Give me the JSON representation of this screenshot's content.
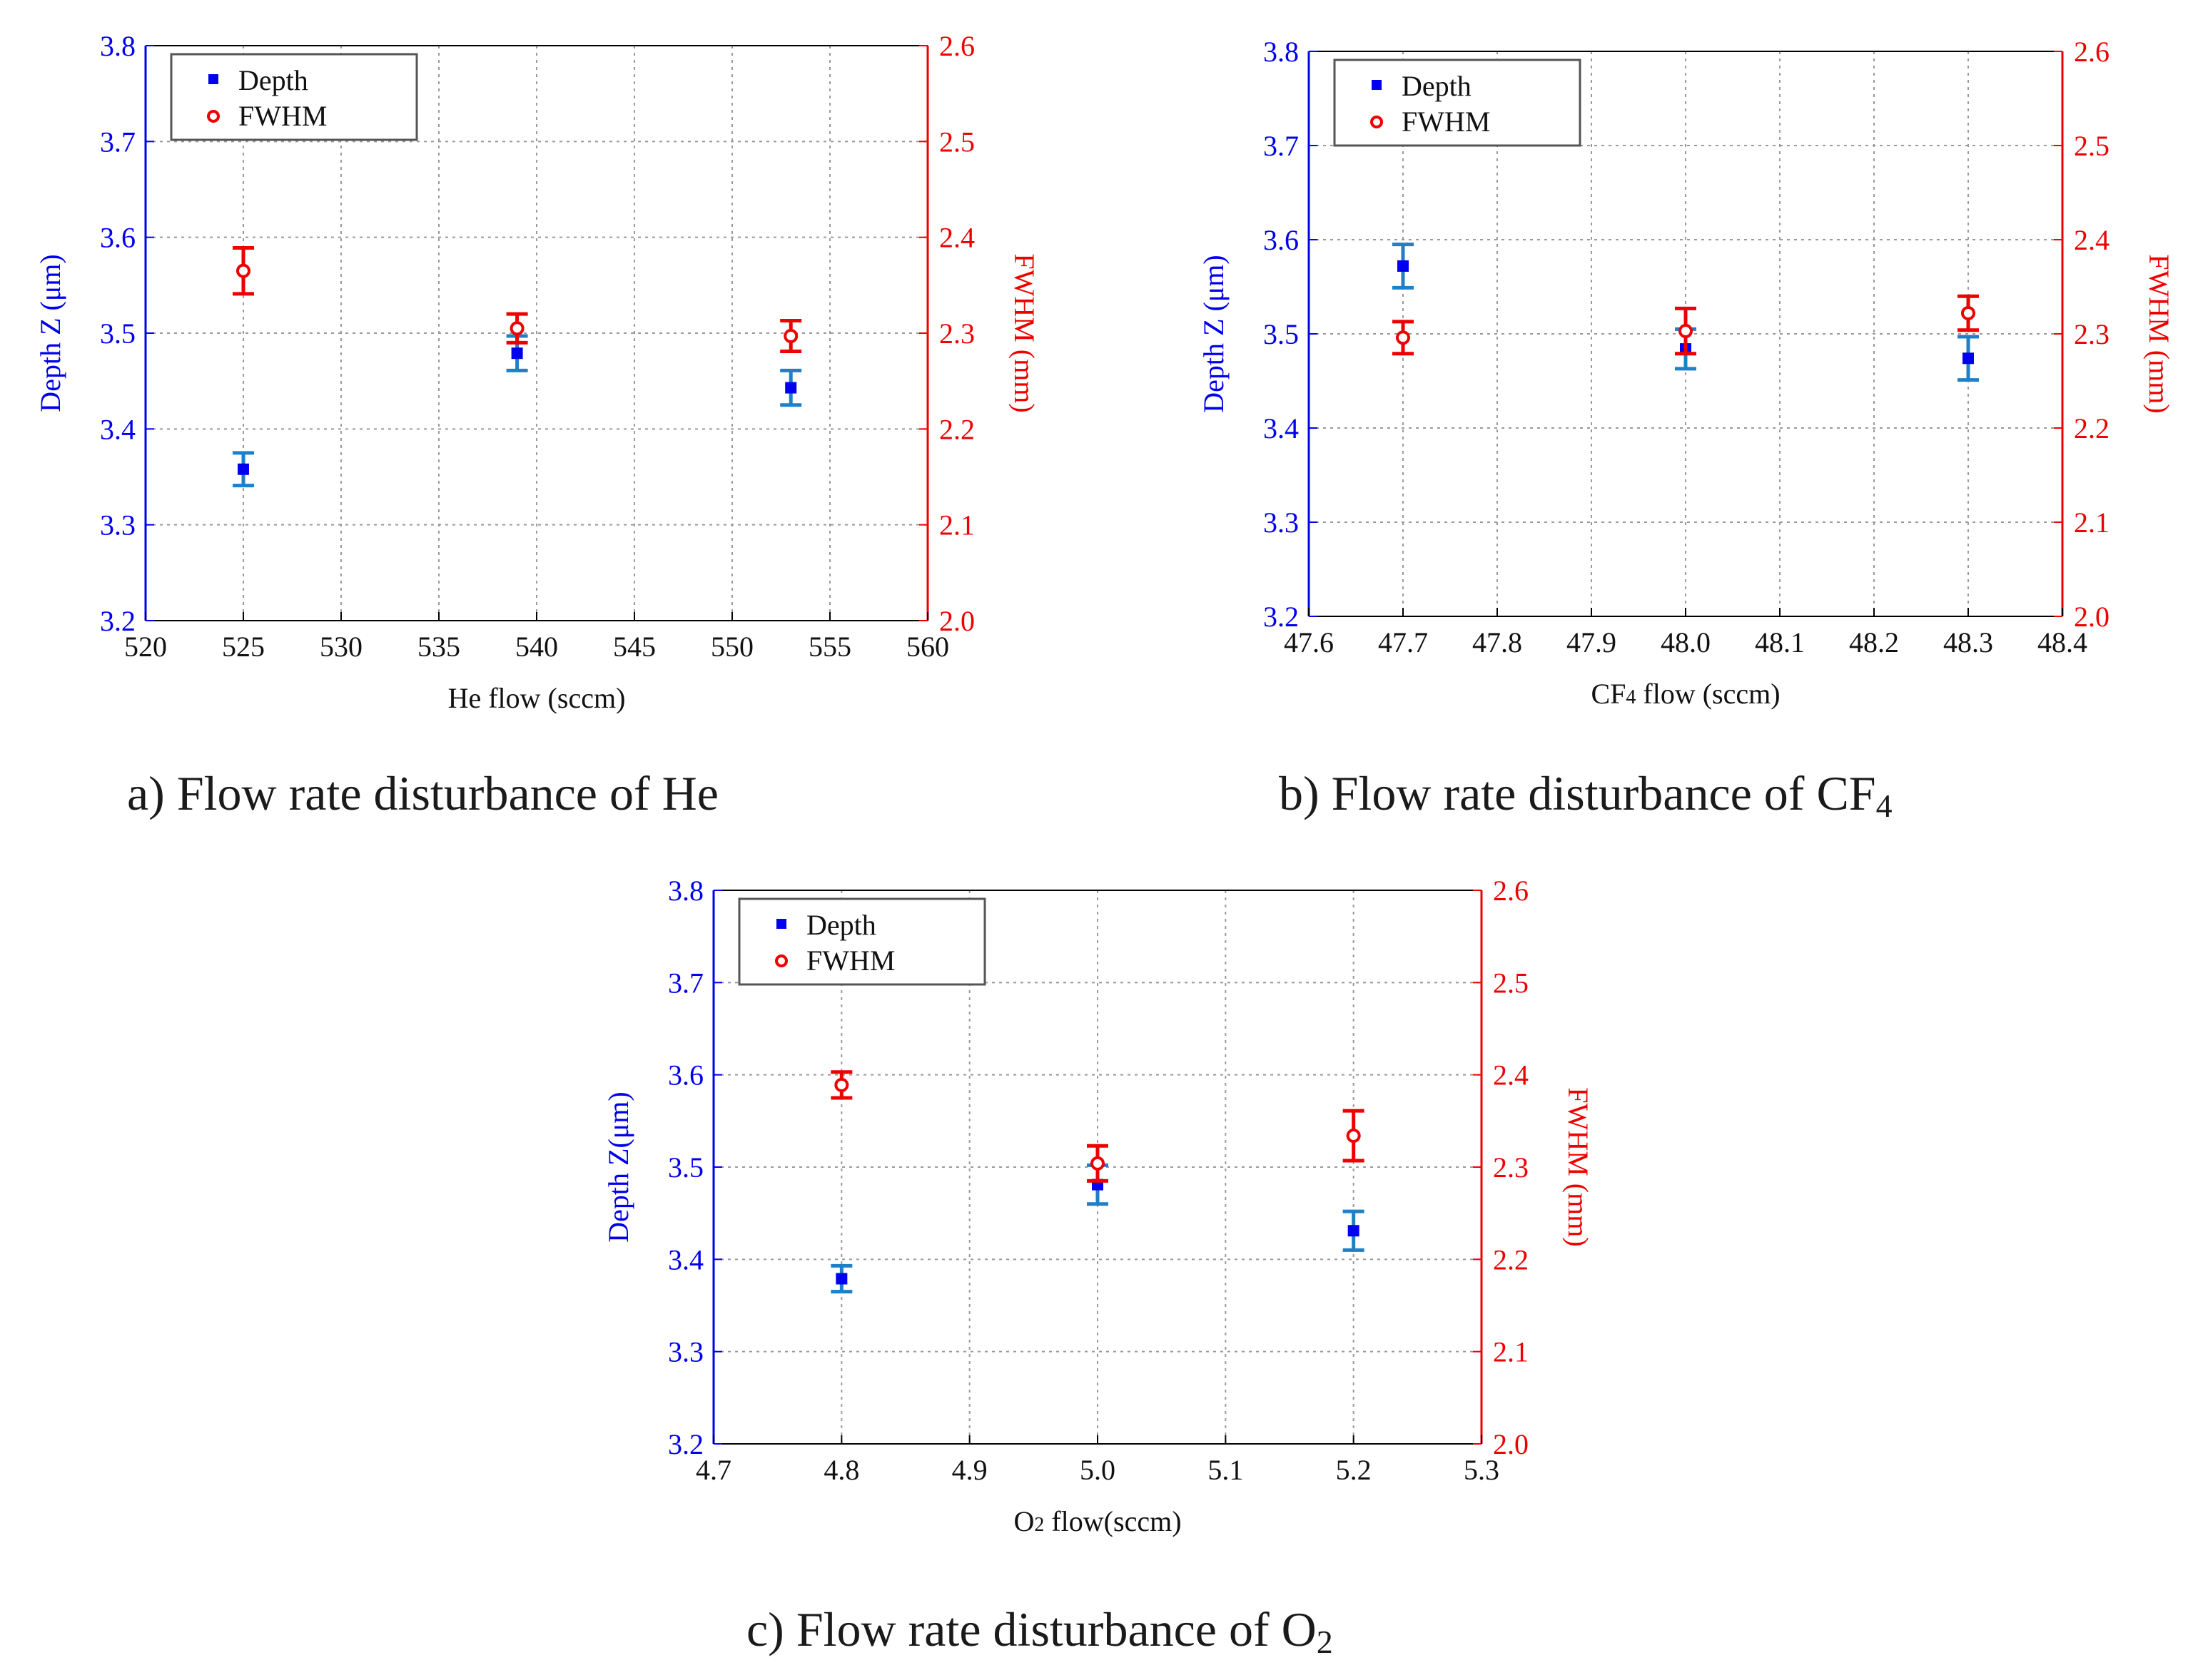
{
  "figure": {
    "colors": {
      "depth": "#0000ee",
      "depth_error": "#1f7fc8",
      "fwhm": "#ee0000",
      "grid": "#999999",
      "axis": "#000000"
    },
    "captions": {
      "a": {
        "prefix": "a) Flow rate disturbance of He",
        "subscript": "",
        "suffix": ""
      },
      "b": {
        "prefix": "b) Flow rate disturbance of CF",
        "subscript": "4",
        "suffix": ""
      },
      "c": {
        "prefix": "c) Flow rate disturbance of O",
        "subscript": "2",
        "suffix": ""
      }
    }
  },
  "chart_data": [
    {
      "type": "scatter",
      "panel": "a",
      "title": "",
      "xlabel": {
        "main": "He flow (sccm)",
        "sub": "",
        "rest": ""
      },
      "ylabel_left": "Depth Z (μm)",
      "ylabel_right": "FWHM (mm)",
      "xlim": [
        520,
        560
      ],
      "xticks": [
        520,
        525,
        530,
        535,
        540,
        545,
        550,
        555,
        560
      ],
      "xtick_labels": [
        "520",
        "525",
        "530",
        "535",
        "540",
        "545",
        "550",
        "555",
        "560"
      ],
      "ylim_left": [
        3.2,
        3.8
      ],
      "yticks_left": [
        "3.2",
        "3.3",
        "3.4",
        "3.5",
        "3.6",
        "3.7",
        "3.8"
      ],
      "ylim_right": [
        2.0,
        2.6
      ],
      "yticks_right": [
        "2.0",
        "2.1",
        "2.2",
        "2.3",
        "2.4",
        "2.5",
        "2.6"
      ],
      "grid": true,
      "legend_position": "top-left",
      "legend": [
        "Depth",
        "FWHM"
      ],
      "series": [
        {
          "name": "Depth",
          "axis": "left",
          "marker": "square",
          "x": [
            525,
            539,
            553
          ],
          "y": [
            3.358,
            3.479,
            3.443
          ],
          "err": [
            0.017,
            0.018,
            0.018
          ]
        },
        {
          "name": "FWHM",
          "axis": "right",
          "marker": "circle",
          "x": [
            525,
            539,
            553
          ],
          "y": [
            2.365,
            2.305,
            2.297
          ],
          "err": [
            0.024,
            0.015,
            0.016
          ]
        }
      ]
    },
    {
      "type": "scatter",
      "panel": "b",
      "title": "",
      "xlabel": {
        "main": "CF",
        "sub": "4",
        "rest": " flow (sccm)"
      },
      "ylabel_left": "Depth Z (μm)",
      "ylabel_right": "FWHM (mm)",
      "xlim": [
        47.6,
        48.4
      ],
      "xticks": [
        47.6,
        47.7,
        47.8,
        47.9,
        48.0,
        48.1,
        48.2,
        48.3,
        48.4
      ],
      "xtick_labels": [
        "47.6",
        "47.7",
        "47.8",
        "47.9",
        "48.0",
        "48.1",
        "48.2",
        "48.3",
        "48.4"
      ],
      "ylim_left": [
        3.2,
        3.8
      ],
      "yticks_left": [
        "3.2",
        "3.3",
        "3.4",
        "3.5",
        "3.6",
        "3.7",
        "3.8"
      ],
      "ylim_right": [
        2.0,
        2.6
      ],
      "yticks_right": [
        "2.0",
        "2.1",
        "2.2",
        "2.3",
        "2.4",
        "2.5",
        "2.6"
      ],
      "grid": true,
      "legend_position": "top-left",
      "legend": [
        "Depth",
        "FWHM"
      ],
      "series": [
        {
          "name": "Depth",
          "axis": "left",
          "marker": "square",
          "x": [
            47.7,
            48.0,
            48.3
          ],
          "y": [
            3.572,
            3.484,
            3.474
          ],
          "err": [
            0.023,
            0.021,
            0.023
          ]
        },
        {
          "name": "FWHM",
          "axis": "right",
          "marker": "circle",
          "x": [
            47.7,
            48.0,
            48.3
          ],
          "y": [
            2.296,
            2.303,
            2.322
          ],
          "err": [
            0.017,
            0.024,
            0.018
          ]
        }
      ]
    },
    {
      "type": "scatter",
      "panel": "c",
      "title": "",
      "xlabel": {
        "main": "O",
        "sub": "2",
        "rest": " flow(sccm)"
      },
      "ylabel_left": "Depth Z(μm)",
      "ylabel_right": "FWHM (mm)",
      "xlim": [
        4.7,
        5.3
      ],
      "xticks": [
        4.7,
        4.8,
        4.9,
        5.0,
        5.1,
        5.2,
        5.3
      ],
      "xtick_labels": [
        "4.7",
        "4.8",
        "4.9",
        "5.0",
        "5.1",
        "5.2",
        "5.3"
      ],
      "ylim_left": [
        3.2,
        3.8
      ],
      "yticks_left": [
        "3.2",
        "3.3",
        "3.4",
        "3.5",
        "3.6",
        "3.7",
        "3.8"
      ],
      "ylim_right": [
        2.0,
        2.6
      ],
      "yticks_right": [
        "2.0",
        "2.1",
        "2.2",
        "2.3",
        "2.4",
        "2.5",
        "2.6"
      ],
      "grid": true,
      "legend_position": "top-left",
      "legend": [
        "Depth",
        "FWHM"
      ],
      "series": [
        {
          "name": "Depth",
          "axis": "left",
          "marker": "square",
          "x": [
            4.8,
            5.0,
            5.2
          ],
          "y": [
            3.379,
            3.481,
            3.431
          ],
          "err": [
            0.014,
            0.021,
            0.021
          ]
        },
        {
          "name": "FWHM",
          "axis": "right",
          "marker": "circle",
          "x": [
            4.8,
            5.0,
            5.2
          ],
          "y": [
            2.389,
            2.304,
            2.334
          ],
          "err": [
            0.014,
            0.019,
            0.027
          ]
        }
      ]
    }
  ]
}
